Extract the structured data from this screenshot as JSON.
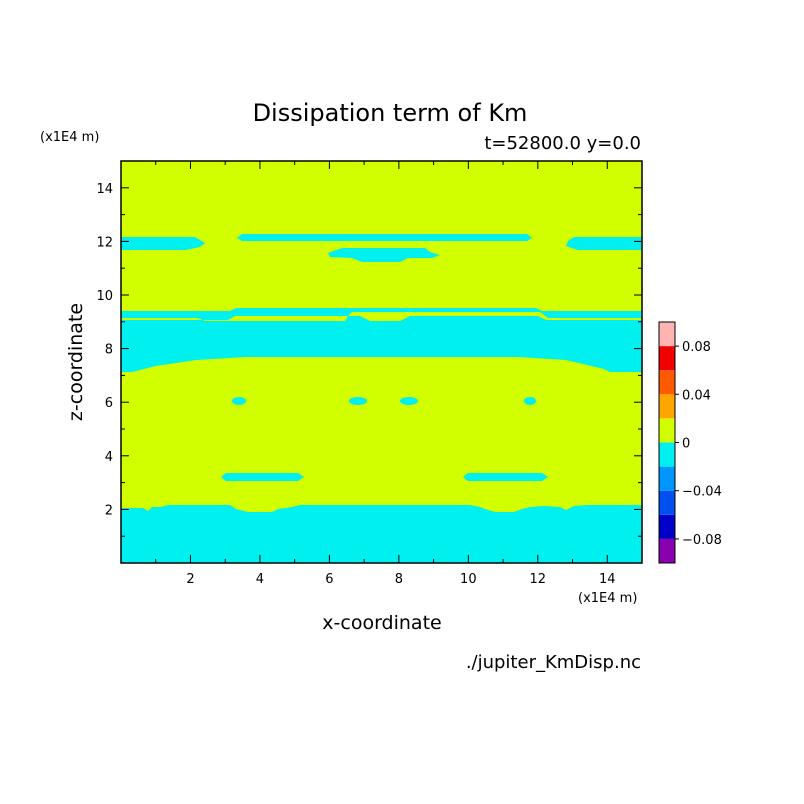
{
  "chart_data": {
    "type": "heatmap",
    "title": "Dissipation term of Km",
    "subtitle": "t=52800.0 y=0.0",
    "xlabel": "x-coordinate",
    "ylabel": "z-coordinate",
    "x_unit": "(x1E4 m)",
    "y_unit": "(x1E4 m)",
    "source_file": "./jupiter_KmDisp.nc",
    "xlim": [
      0,
      15
    ],
    "ylim": [
      0,
      15
    ],
    "x_ticks": [
      2,
      4,
      6,
      8,
      10,
      12,
      14
    ],
    "y_ticks": [
      2,
      4,
      6,
      8,
      10,
      12,
      14
    ],
    "x_tick_labels": [
      "2",
      "4",
      "6",
      "8",
      "10",
      "12",
      "14"
    ],
    "y_tick_labels": [
      "2",
      "4",
      "6",
      "8",
      "10",
      "12",
      "14"
    ],
    "background_value_band": "0 to 0.02",
    "colorbar": {
      "levels": [
        -0.1,
        -0.08,
        -0.06,
        -0.04,
        -0.02,
        0,
        0.02,
        0.04,
        0.06,
        0.08,
        0.1
      ],
      "colors": [
        "#8a00b0",
        "#0000c8",
        "#0050f0",
        "#0096ff",
        "#00f0f0",
        "#d2ff00",
        "#ffa500",
        "#ff5a00",
        "#f00000",
        "#ffb4b4"
      ],
      "tick_values": [
        0.08,
        0.04,
        0,
        -0.04,
        -0.08
      ],
      "tick_labels": [
        "0.08",
        "0.04",
        "0",
        "−0.04",
        "−0.08"
      ]
    },
    "negative_regions_band": "-0.02 to 0",
    "negative_regions": [
      {
        "x": [
          0,
          15
        ],
        "z": [
          0,
          2.1
        ]
      },
      {
        "x": [
          0,
          15
        ],
        "z": [
          7.0,
          9.4
        ]
      },
      {
        "x": [
          0,
          2.4
        ],
        "z": [
          11.8,
          12.1
        ]
      },
      {
        "x": [
          3.3,
          11.8
        ],
        "z": [
          11.9,
          12.2
        ]
      },
      {
        "x": [
          12.7,
          15
        ],
        "z": [
          11.8,
          12.1
        ]
      },
      {
        "x": [
          6.0,
          8.8
        ],
        "z": [
          11.2,
          11.7
        ]
      },
      {
        "x": [
          3.0,
          5.2
        ],
        "z": [
          3.2,
          3.4
        ]
      },
      {
        "x": [
          9.8,
          12.0
        ],
        "z": [
          3.2,
          3.4
        ]
      }
    ]
  }
}
